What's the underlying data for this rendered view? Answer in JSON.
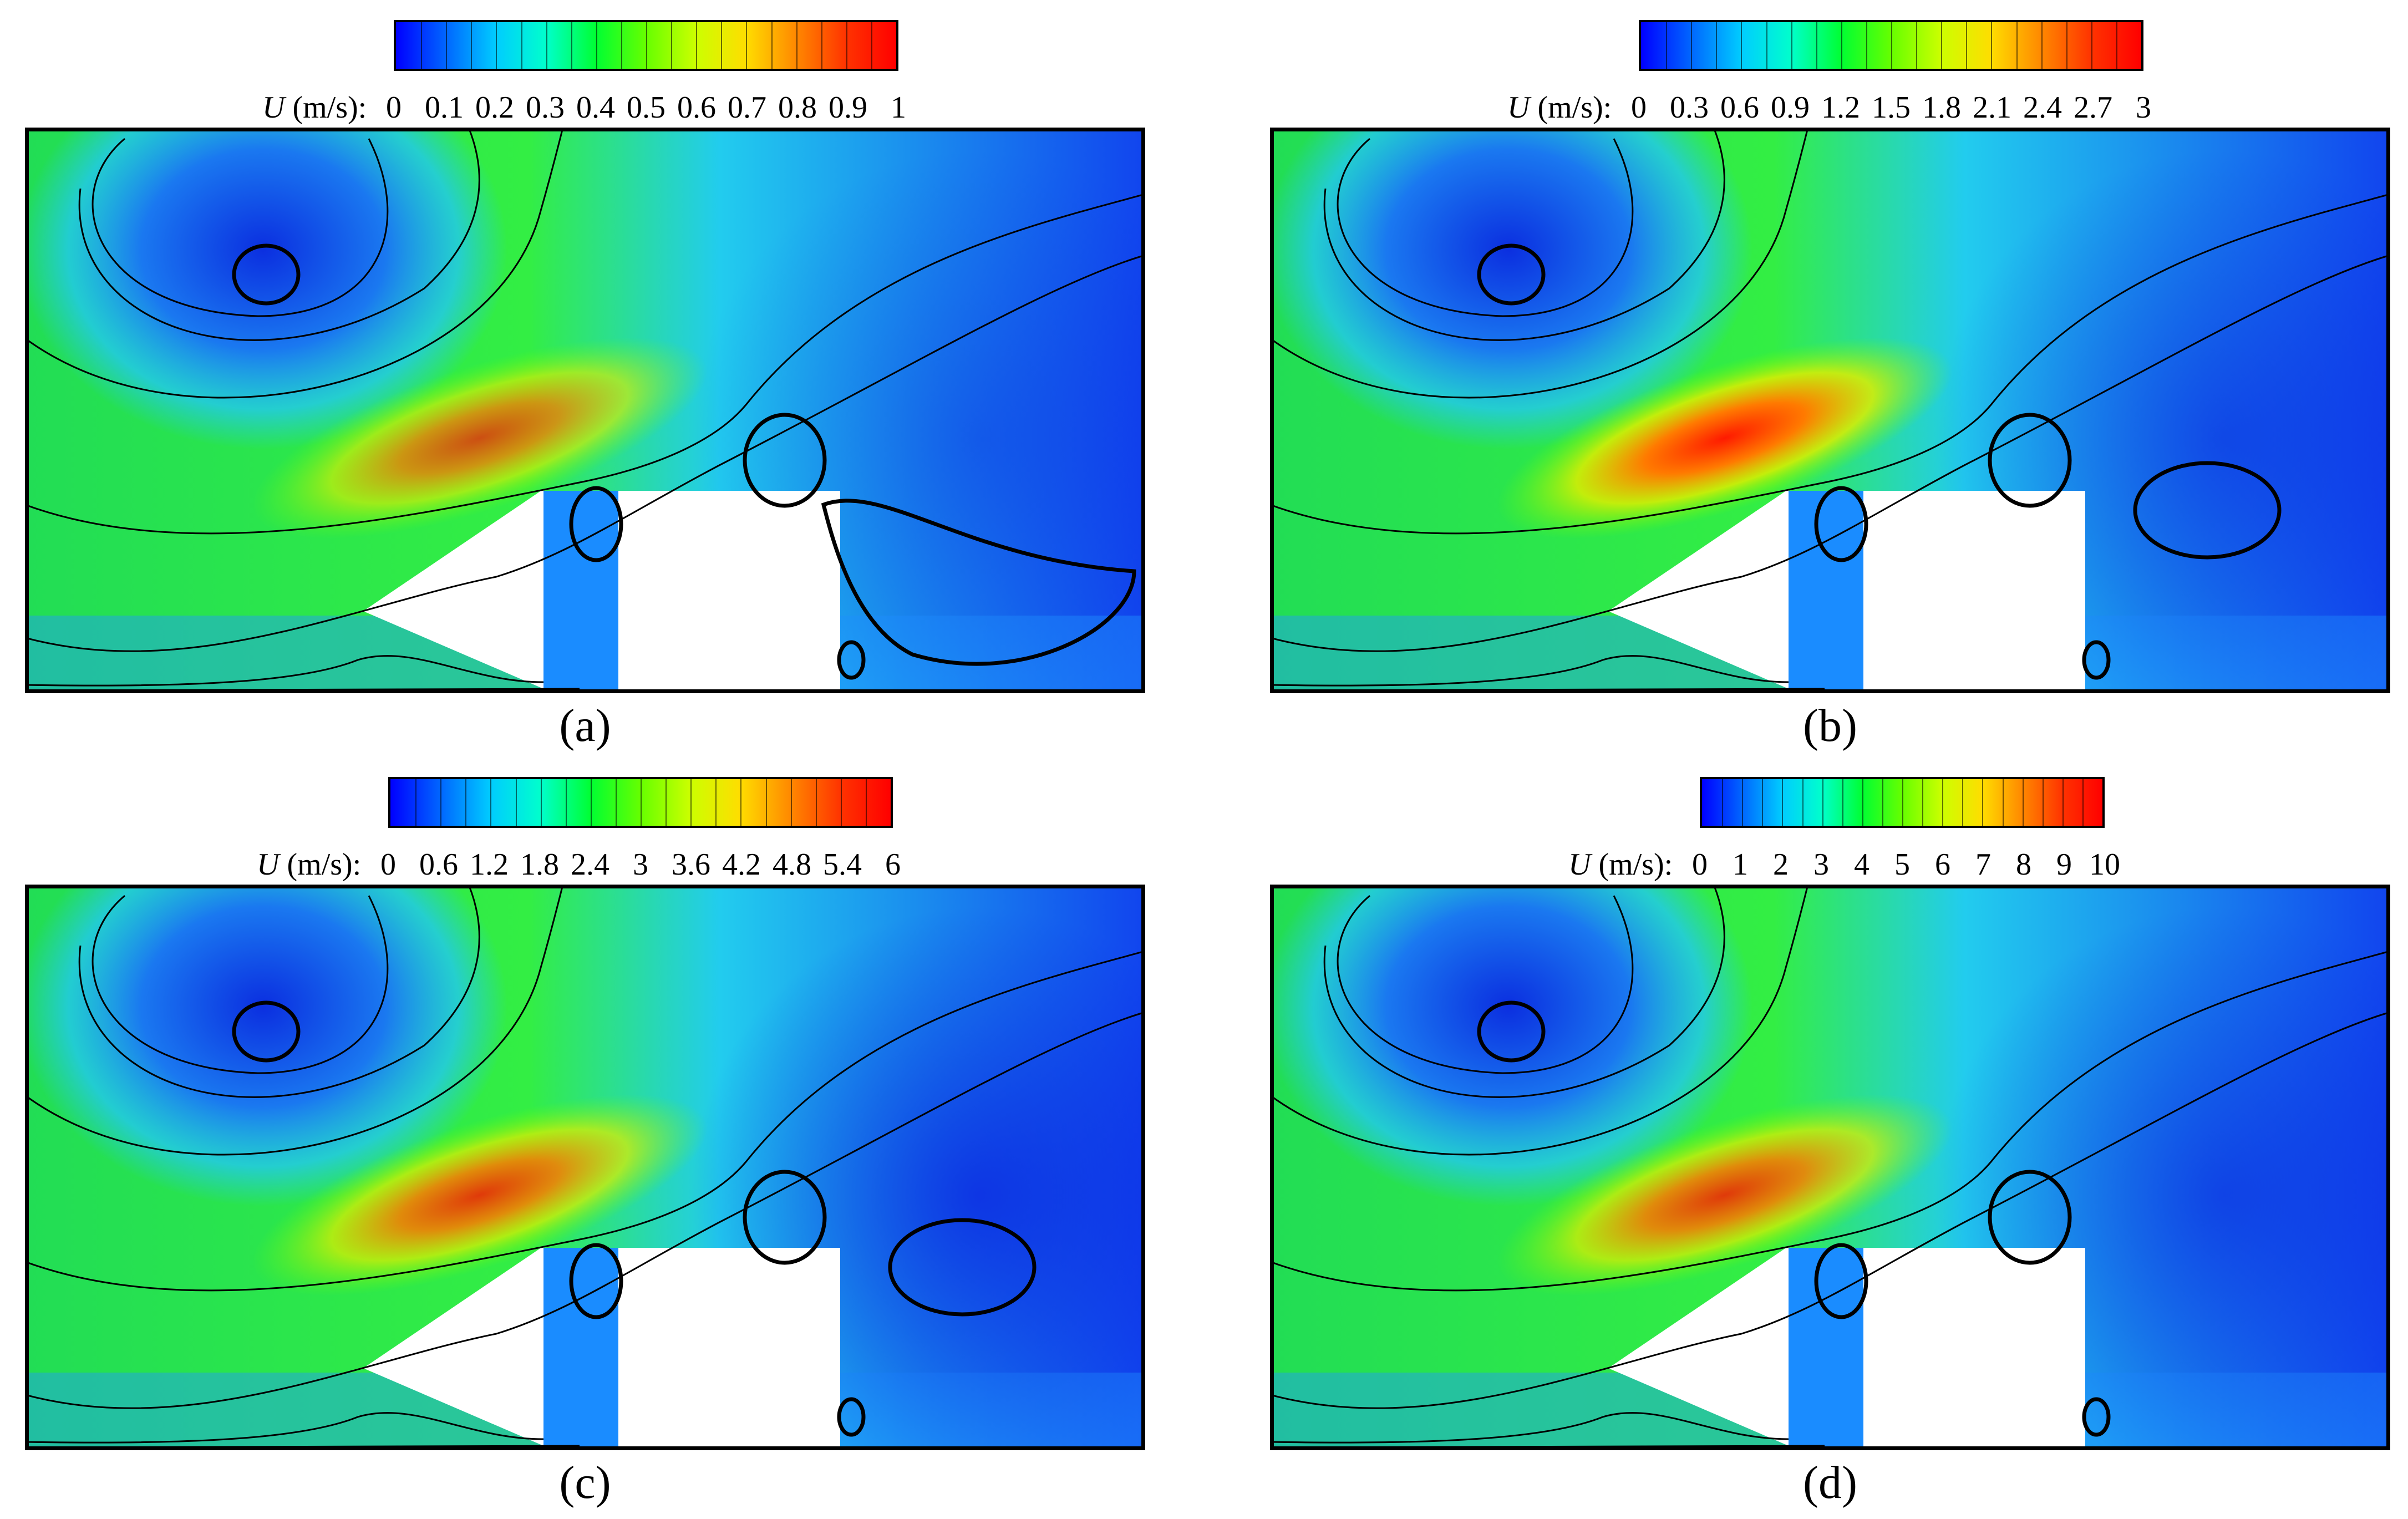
{
  "chart_data": [
    {
      "type": "heatmap",
      "panel": "(a)",
      "colorbar_label": "(m/s):",
      "colorbar_symbol": "U",
      "ticks": [
        "0",
        "0.1",
        "0.2",
        "0.3",
        "0.4",
        "0.5",
        "0.6",
        "0.7",
        "0.8",
        "0.9",
        "1"
      ],
      "vmin": 0,
      "vmax": 1,
      "colormap": [
        "#0000ff",
        "#0066ff",
        "#00ccff",
        "#00ffcc",
        "#00ff33",
        "#66ff00",
        "#ccff00",
        "#ffdd00",
        "#ff8800",
        "#ff3300",
        "#ff0000"
      ]
    },
    {
      "type": "heatmap",
      "panel": "(b)",
      "colorbar_label": "(m/s):",
      "colorbar_symbol": "U",
      "ticks": [
        "0",
        "0.3",
        "0.6",
        "0.9",
        "1.2",
        "1.5",
        "1.8",
        "2.1",
        "2.4",
        "2.7",
        "3"
      ],
      "vmin": 0,
      "vmax": 3,
      "colormap": [
        "#0000ff",
        "#0066ff",
        "#00ccff",
        "#00ffcc",
        "#00ff33",
        "#66ff00",
        "#ccff00",
        "#ffdd00",
        "#ff8800",
        "#ff3300",
        "#ff0000"
      ]
    },
    {
      "type": "heatmap",
      "panel": "(c)",
      "colorbar_label": "(m/s):",
      "colorbar_symbol": "U",
      "ticks": [
        "0",
        "0.6",
        "1.2",
        "1.8",
        "2.4",
        "3",
        "3.6",
        "4.2",
        "4.8",
        "5.4",
        "6"
      ],
      "vmin": 0,
      "vmax": 6,
      "colormap": [
        "#0000ff",
        "#0066ff",
        "#00ccff",
        "#00ffcc",
        "#00ff33",
        "#66ff00",
        "#ccff00",
        "#ffdd00",
        "#ff8800",
        "#ff3300",
        "#ff0000"
      ]
    },
    {
      "type": "heatmap",
      "panel": "(d)",
      "colorbar_label": "(m/s):",
      "colorbar_symbol": "U",
      "ticks": [
        "0",
        "1",
        "2",
        "3",
        "4",
        "5",
        "6",
        "7",
        "8",
        "9",
        "10"
      ],
      "vmin": 0,
      "vmax": 10,
      "colormap": [
        "#0000ff",
        "#0066ff",
        "#00ccff",
        "#00ffcc",
        "#00ff33",
        "#66ff00",
        "#ccff00",
        "#ffdd00",
        "#ff8800",
        "#ff3300",
        "#ff0000"
      ]
    }
  ]
}
